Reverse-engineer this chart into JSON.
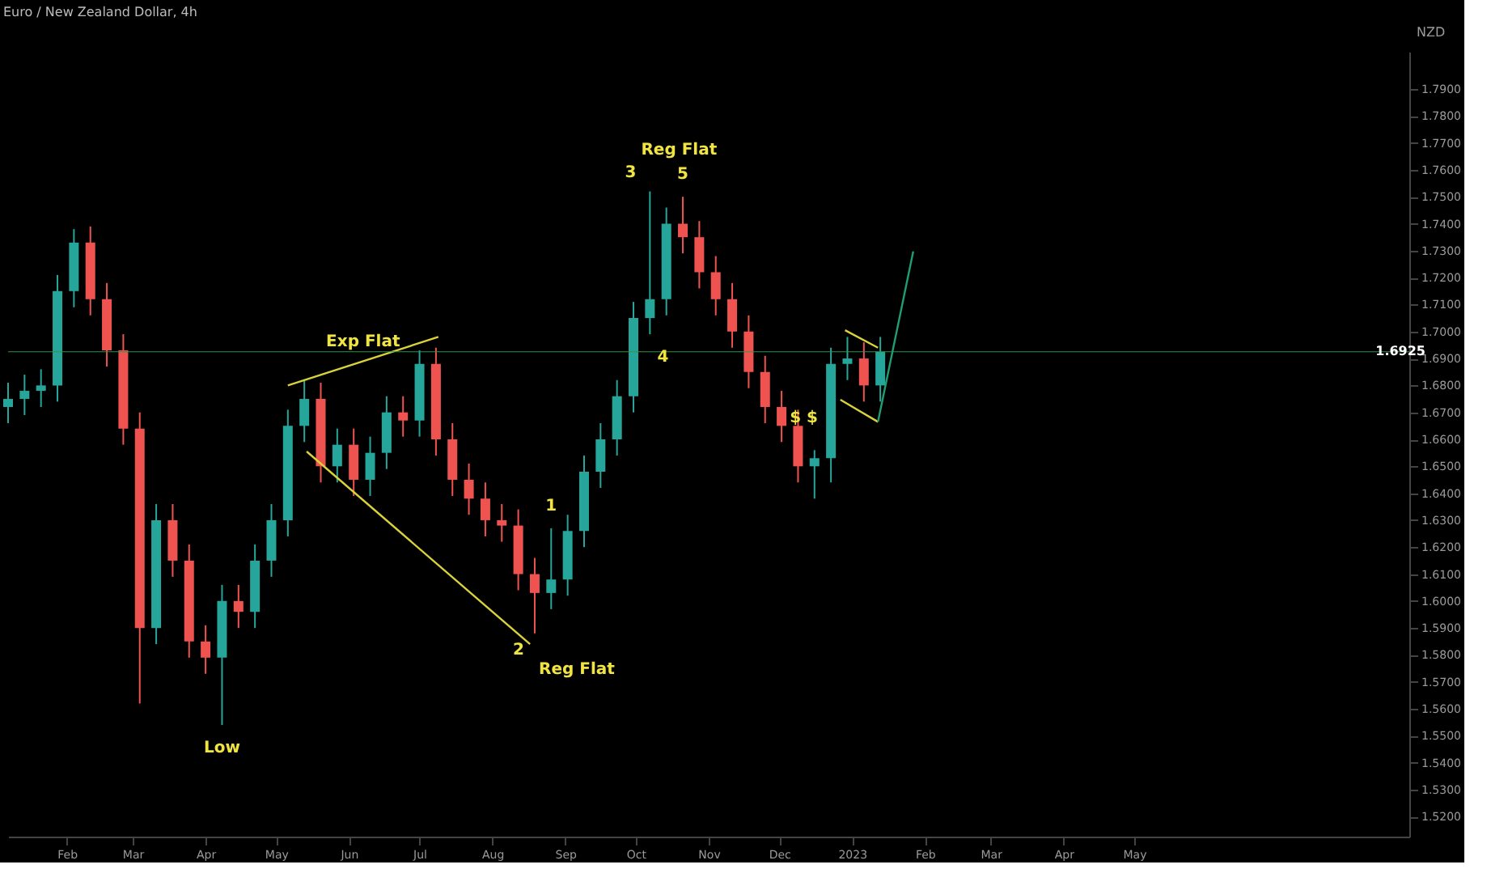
{
  "chart_data": {
    "type": "candlestick",
    "title": "Euro / New Zealand Dollar, 4h",
    "ylabel": "NZD",
    "x": [
      "2022-01-07",
      "2022-01-14",
      "2022-01-21",
      "2022-01-28",
      "2022-02-04",
      "2022-02-11",
      "2022-02-18",
      "2022-02-25",
      "2022-03-04",
      "2022-03-11",
      "2022-03-18",
      "2022-03-25",
      "2022-04-01",
      "2022-04-08",
      "2022-04-15",
      "2022-04-22",
      "2022-04-29",
      "2022-05-06",
      "2022-05-13",
      "2022-05-20",
      "2022-05-27",
      "2022-06-03",
      "2022-06-10",
      "2022-06-17",
      "2022-06-24",
      "2022-07-01",
      "2022-07-08",
      "2022-07-15",
      "2022-07-22",
      "2022-07-29",
      "2022-08-05",
      "2022-08-12",
      "2022-08-19",
      "2022-08-26",
      "2022-09-02",
      "2022-09-09",
      "2022-09-16",
      "2022-09-23",
      "2022-09-30",
      "2022-10-07",
      "2022-10-14",
      "2022-10-21",
      "2022-10-28",
      "2022-11-04",
      "2022-11-11",
      "2022-11-18",
      "2022-11-25",
      "2022-12-02",
      "2022-12-09",
      "2022-12-16",
      "2022-12-23",
      "2022-12-30",
      "2023-01-06",
      "2023-01-13"
    ],
    "ohlc": [
      [
        1.672,
        1.681,
        1.666,
        1.675
      ],
      [
        1.675,
        1.684,
        1.669,
        1.678
      ],
      [
        1.678,
        1.686,
        1.672,
        1.68
      ],
      [
        1.68,
        1.721,
        1.674,
        1.715
      ],
      [
        1.715,
        1.738,
        1.709,
        1.733
      ],
      [
        1.733,
        1.739,
        1.706,
        1.712
      ],
      [
        1.712,
        1.718,
        1.687,
        1.693
      ],
      [
        1.693,
        1.699,
        1.658,
        1.664
      ],
      [
        1.664,
        1.67,
        1.562,
        1.59
      ],
      [
        1.59,
        1.636,
        1.584,
        1.63
      ],
      [
        1.63,
        1.636,
        1.609,
        1.615
      ],
      [
        1.615,
        1.621,
        1.579,
        1.585
      ],
      [
        1.585,
        1.591,
        1.573,
        1.579
      ],
      [
        1.579,
        1.606,
        1.554,
        1.6
      ],
      [
        1.6,
        1.606,
        1.59,
        1.596
      ],
      [
        1.596,
        1.621,
        1.59,
        1.615
      ],
      [
        1.615,
        1.636,
        1.609,
        1.63
      ],
      [
        1.63,
        1.671,
        1.624,
        1.665
      ],
      [
        1.665,
        1.682,
        1.659,
        1.675
      ],
      [
        1.675,
        1.681,
        1.644,
        1.65
      ],
      [
        1.65,
        1.664,
        1.644,
        1.658
      ],
      [
        1.658,
        1.664,
        1.639,
        1.645
      ],
      [
        1.645,
        1.661,
        1.639,
        1.655
      ],
      [
        1.655,
        1.676,
        1.649,
        1.67
      ],
      [
        1.67,
        1.676,
        1.661,
        1.667
      ],
      [
        1.667,
        1.693,
        1.661,
        1.688
      ],
      [
        1.688,
        1.694,
        1.654,
        1.66
      ],
      [
        1.66,
        1.666,
        1.639,
        1.645
      ],
      [
        1.645,
        1.651,
        1.632,
        1.638
      ],
      [
        1.638,
        1.644,
        1.624,
        1.63
      ],
      [
        1.63,
        1.636,
        1.622,
        1.628
      ],
      [
        1.628,
        1.634,
        1.604,
        1.61
      ],
      [
        1.61,
        1.616,
        1.588,
        1.603
      ],
      [
        1.603,
        1.627,
        1.597,
        1.608
      ],
      [
        1.608,
        1.632,
        1.602,
        1.626
      ],
      [
        1.626,
        1.654,
        1.62,
        1.648
      ],
      [
        1.648,
        1.666,
        1.642,
        1.66
      ],
      [
        1.66,
        1.682,
        1.654,
        1.676
      ],
      [
        1.676,
        1.711,
        1.67,
        1.705
      ],
      [
        1.705,
        1.752,
        1.699,
        1.712
      ],
      [
        1.712,
        1.746,
        1.706,
        1.74
      ],
      [
        1.74,
        1.75,
        1.729,
        1.735
      ],
      [
        1.735,
        1.741,
        1.716,
        1.722
      ],
      [
        1.722,
        1.728,
        1.706,
        1.712
      ],
      [
        1.712,
        1.718,
        1.694,
        1.7
      ],
      [
        1.7,
        1.706,
        1.679,
        1.685
      ],
      [
        1.685,
        1.691,
        1.666,
        1.672
      ],
      [
        1.672,
        1.678,
        1.659,
        1.665
      ],
      [
        1.665,
        1.671,
        1.644,
        1.65
      ],
      [
        1.65,
        1.656,
        1.638,
        1.653
      ],
      [
        1.653,
        1.694,
        1.644,
        1.688
      ],
      [
        1.688,
        1.698,
        1.682,
        1.69
      ],
      [
        1.69,
        1.696,
        1.674,
        1.68
      ],
      [
        1.68,
        1.698,
        1.674,
        1.6925
      ]
    ],
    "series": [
      {
        "type": "line",
        "color": "#d9d23a",
        "x": [
          "2022-05-06",
          "2022-07-09"
        ],
        "values": [
          1.68,
          1.698
        ]
      },
      {
        "type": "line",
        "color": "#d9d23a",
        "x": [
          "2022-05-14",
          "2022-08-17"
        ],
        "values": [
          1.6555,
          1.584
        ]
      },
      {
        "type": "line",
        "color": "#d9d23a",
        "x": [
          "2022-12-29",
          "2023-01-12"
        ],
        "values": [
          1.7005,
          1.694
        ]
      },
      {
        "type": "line",
        "color": "#d9d23a",
        "x": [
          "2022-12-27",
          "2023-01-12"
        ],
        "values": [
          1.6747,
          1.6665
        ]
      },
      {
        "type": "line",
        "color": "#1f9e74",
        "x": [
          "2023-01-12",
          "2023-01-27"
        ],
        "values": [
          1.6665,
          1.7297
        ]
      }
    ],
    "ref_lines": [
      {
        "axis": "y",
        "value": 1.6925,
        "label": "1.6925",
        "color": "#3a8f4a"
      }
    ],
    "annotations": [
      {
        "text": "Exp Flat",
        "x": "2022-06-07",
        "y": 1.689
      },
      {
        "text": "Low",
        "x": "2022-04-08",
        "y": 1.554
      },
      {
        "text": "Reg Flat",
        "x": "2022-08-19",
        "y": 1.588
      },
      {
        "text": "Reg Flat",
        "x": "2022-10-07",
        "y": 1.752
      },
      {
        "text": "$ $",
        "x": "2022-12-28",
        "y": 1.668
      },
      {
        "text": "1",
        "x": "2022-08-26",
        "y": 1.627
      },
      {
        "text": "2",
        "x": "2022-08-19",
        "y": 1.588
      },
      {
        "text": "3",
        "x": "2022-10-07",
        "y": 1.752
      },
      {
        "text": "4",
        "x": "2022-10-07",
        "y": 1.699
      },
      {
        "text": "5",
        "x": "2022-10-21",
        "y": 1.75
      }
    ],
    "xlim": [
      "2022-01-07",
      "2023-08-26"
    ],
    "xticks": [
      {
        "value": "2022-02-01",
        "label": "Feb"
      },
      {
        "value": "2022-03-01",
        "label": "Mar"
      },
      {
        "value": "2022-04-01",
        "label": "Apr"
      },
      {
        "value": "2022-05-01",
        "label": "May"
      },
      {
        "value": "2022-06-01",
        "label": "Jun"
      },
      {
        "value": "2022-07-01",
        "label": "Jul"
      },
      {
        "value": "2022-08-01",
        "label": "Aug"
      },
      {
        "value": "2022-09-01",
        "label": "Sep"
      },
      {
        "value": "2022-10-01",
        "label": "Oct"
      },
      {
        "value": "2022-11-01",
        "label": "Nov"
      },
      {
        "value": "2022-12-01",
        "label": "Dec"
      },
      {
        "value": "2023-01-01",
        "label": "2023"
      },
      {
        "value": "2023-02-01",
        "label": "Feb"
      },
      {
        "value": "2023-03-01",
        "label": "Mar"
      },
      {
        "value": "2023-04-01",
        "label": "Apr"
      },
      {
        "value": "2023-05-01",
        "label": "May"
      }
    ],
    "ylim": [
      1.5126,
      1.8038
    ],
    "yticks": [
      {
        "value": 1.52,
        "label": "1.5200"
      },
      {
        "value": 1.53,
        "label": "1.5300"
      },
      {
        "value": 1.54,
        "label": "1.5400"
      },
      {
        "value": 1.55,
        "label": "1.5500"
      },
      {
        "value": 1.56,
        "label": "1.5600"
      },
      {
        "value": 1.57,
        "label": "1.5700"
      },
      {
        "value": 1.58,
        "label": "1.5800"
      },
      {
        "value": 1.59,
        "label": "1.5900"
      },
      {
        "value": 1.6,
        "label": "1.6000"
      },
      {
        "value": 1.61,
        "label": "1.6100"
      },
      {
        "value": 1.62,
        "label": "1.6200"
      },
      {
        "value": 1.63,
        "label": "1.6300"
      },
      {
        "value": 1.64,
        "label": "1.6400"
      },
      {
        "value": 1.65,
        "label": "1.6500"
      },
      {
        "value": 1.66,
        "label": "1.6600"
      },
      {
        "value": 1.67,
        "label": "1.6700"
      },
      {
        "value": 1.68,
        "label": "1.6800"
      },
      {
        "value": 1.69,
        "label": "1.6900"
      },
      {
        "value": 1.7,
        "label": "1.7000"
      },
      {
        "value": 1.71,
        "label": "1.7100"
      },
      {
        "value": 1.72,
        "label": "1.7200"
      },
      {
        "value": 1.73,
        "label": "1.7300"
      },
      {
        "value": 1.74,
        "label": "1.7400"
      },
      {
        "value": 1.75,
        "label": "1.7500"
      },
      {
        "value": 1.76,
        "label": "1.7600"
      },
      {
        "value": 1.77,
        "label": "1.7700"
      },
      {
        "value": 1.78,
        "label": "1.7800"
      },
      {
        "value": 1.79,
        "label": "1.7900"
      }
    ],
    "grid": false
  }
}
